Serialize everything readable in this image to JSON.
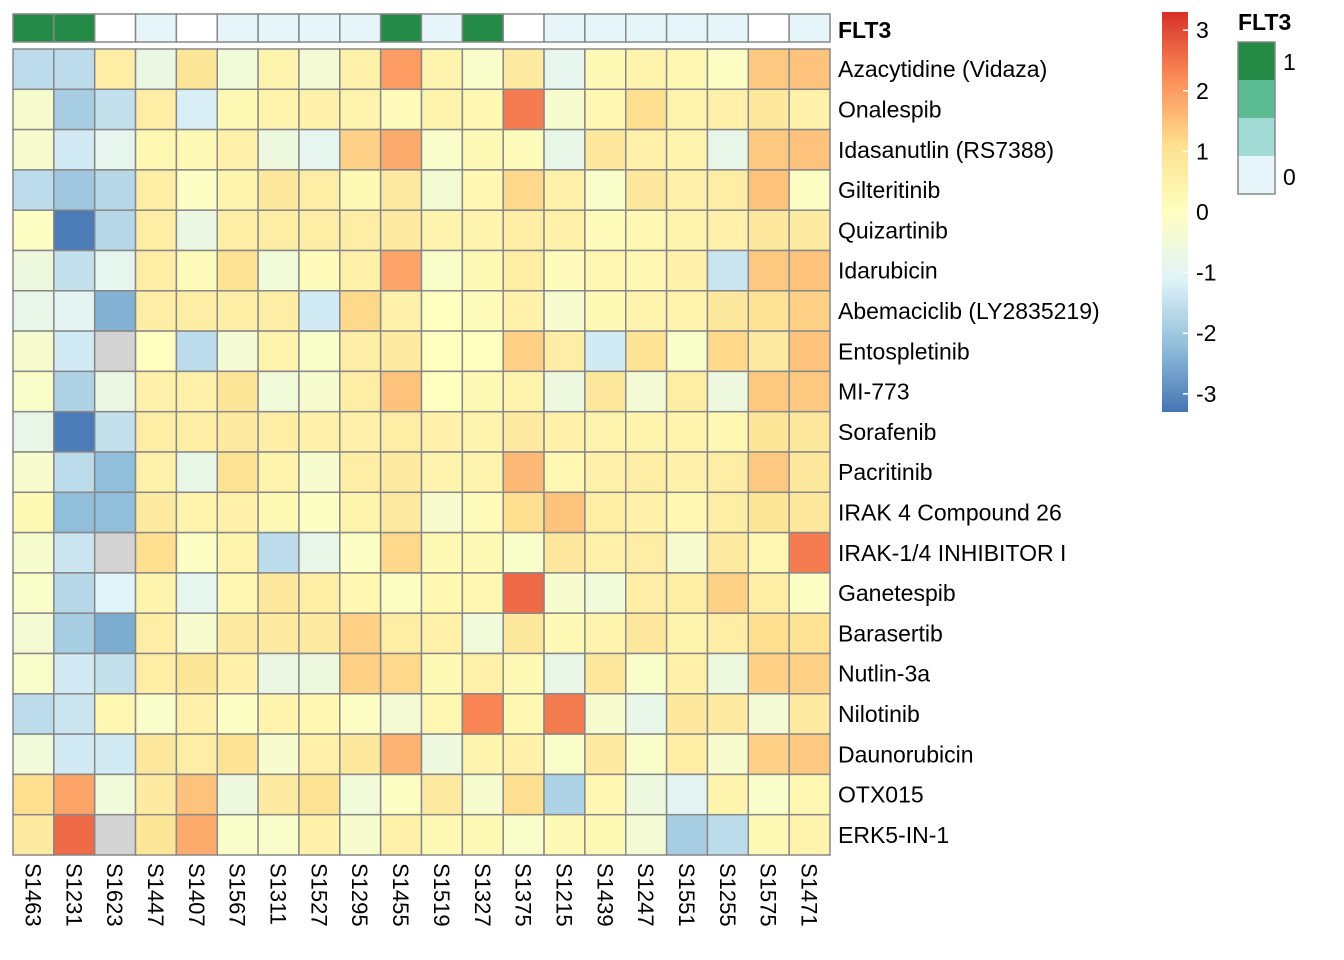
{
  "chart_data": {
    "type": "heatmap",
    "title": "",
    "columns": [
      "S1463",
      "S1231",
      "S1623",
      "S1447",
      "S1407",
      "S1567",
      "S1311",
      "S1527",
      "S1295",
      "S1455",
      "S1519",
      "S1327",
      "S1375",
      "S1215",
      "S1439",
      "S1247",
      "S1551",
      "S1255",
      "S1575",
      "S1471"
    ],
    "rows": [
      "Azacytidine (Vidaza)",
      "Onalespib",
      "Idasanutlin (RS7388)",
      "Gilteritinib",
      "Quizartinib",
      "Idarubicin",
      "Abemaciclib (LY2835219)",
      "Entospletinib",
      "MI-773",
      "Sorafenib",
      "Pacritinib",
      "IRAK 4 Compound 26",
      "IRAK-1/4 INHIBITOR I",
      "Ganetespib",
      "Barasertib",
      "Nutlin-3a",
      "Nilotinib",
      "Daunorubicin",
      "OTX015",
      "ERK5-IN-1"
    ],
    "values": [
      [
        -1.6,
        -1.6,
        0.6,
        -0.7,
        0.9,
        -0.5,
        0.4,
        -0.4,
        0.5,
        2.0,
        0.4,
        -0.2,
        0.7,
        -0.9,
        0.2,
        0.4,
        0.3,
        -0.1,
        1.4,
        1.5
      ],
      [
        -0.3,
        -1.9,
        -1.5,
        0.6,
        -1.2,
        0.2,
        0.4,
        0.5,
        0.4,
        0.1,
        0.4,
        0.3,
        2.4,
        -0.3,
        0.3,
        1.1,
        0.4,
        0.5,
        0.8,
        0.5
      ],
      [
        -0.3,
        -1.3,
        -0.9,
        0.3,
        0.2,
        0.5,
        -0.6,
        -0.9,
        1.3,
        1.8,
        -0.2,
        0.2,
        0.1,
        -0.8,
        0.8,
        0.5,
        0.4,
        -0.8,
        1.4,
        1.5
      ],
      [
        -1.6,
        -2.0,
        -1.7,
        0.6,
        -0.1,
        0.4,
        0.8,
        0.6,
        0.2,
        0.7,
        -0.4,
        0.3,
        1.2,
        0.5,
        -0.2,
        0.8,
        0.5,
        0.6,
        1.5,
        -0.1
      ],
      [
        -0.1,
        -3.2,
        -1.7,
        0.6,
        -0.7,
        0.6,
        0.6,
        0.6,
        0.6,
        0.7,
        0.4,
        0.4,
        0.6,
        0.5,
        0.1,
        0.3,
        0.4,
        0.5,
        0.8,
        0.7
      ],
      [
        -0.6,
        -1.5,
        -0.9,
        0.6,
        0.1,
        1.0,
        -0.5,
        0.1,
        0.5,
        1.9,
        -0.2,
        0.2,
        0.6,
        0.1,
        0.3,
        0.3,
        0.5,
        -1.4,
        1.4,
        1.5
      ],
      [
        -0.8,
        -1.0,
        -2.4,
        0.6,
        0.6,
        0.6,
        0.6,
        -1.3,
        1.2,
        0.5,
        0.0,
        0.1,
        0.5,
        -0.3,
        0.2,
        0.4,
        0.4,
        0.8,
        1.0,
        1.3
      ],
      [
        -0.3,
        -1.3,
        null,
        0.0,
        -1.6,
        -0.4,
        0.4,
        -0.2,
        0.6,
        0.7,
        0.0,
        0.0,
        1.3,
        0.6,
        -1.3,
        1.0,
        -0.2,
        1.2,
        0.7,
        1.5
      ],
      [
        -0.2,
        -1.8,
        -0.7,
        0.5,
        0.5,
        0.9,
        -0.5,
        -0.3,
        0.6,
        1.5,
        0.0,
        0.2,
        0.4,
        -0.6,
        0.8,
        -0.4,
        0.6,
        -0.6,
        1.4,
        1.4
      ],
      [
        -0.8,
        -3.2,
        -1.5,
        0.6,
        0.6,
        0.7,
        0.6,
        0.5,
        0.5,
        0.6,
        0.5,
        0.4,
        0.7,
        0.5,
        0.4,
        0.4,
        0.4,
        0.3,
        0.9,
        0.8
      ],
      [
        -0.3,
        -1.6,
        -2.2,
        0.5,
        -0.8,
        1.0,
        0.4,
        -0.3,
        0.6,
        0.7,
        0.4,
        0.4,
        1.6,
        0.3,
        0.5,
        0.6,
        0.5,
        0.6,
        1.4,
        0.8
      ],
      [
        0.2,
        -2.2,
        -2.2,
        0.7,
        0.4,
        0.5,
        0.2,
        -0.1,
        0.4,
        0.7,
        -0.3,
        0.1,
        1.1,
        1.5,
        0.6,
        0.5,
        0.3,
        0.6,
        0.9,
        0.8
      ],
      [
        -0.3,
        -1.4,
        null,
        1.1,
        -0.1,
        0.4,
        -1.6,
        -0.8,
        -0.1,
        1.2,
        0.2,
        0.2,
        -0.2,
        0.8,
        0.5,
        0.6,
        -0.3,
        0.7,
        0.3,
        2.4
      ],
      [
        -0.2,
        -1.7,
        -1.1,
        0.4,
        -0.9,
        0.3,
        0.8,
        0.6,
        0.3,
        -0.1,
        0.3,
        0.3,
        2.6,
        -0.3,
        -0.5,
        0.6,
        0.6,
        1.3,
        0.6,
        -0.1
      ],
      [
        -0.4,
        -1.9,
        -2.5,
        0.6,
        -0.3,
        0.7,
        0.7,
        0.7,
        1.3,
        0.6,
        0.5,
        -0.5,
        0.8,
        0.2,
        0.4,
        0.8,
        0.4,
        0.6,
        1.1,
        1.0
      ],
      [
        -0.2,
        -1.3,
        -1.5,
        0.6,
        0.9,
        0.5,
        -0.7,
        -0.6,
        1.3,
        1.2,
        0.2,
        0.5,
        0.2,
        -0.8,
        0.8,
        -0.2,
        0.5,
        -0.6,
        1.3,
        1.3
      ],
      [
        -1.6,
        -1.4,
        0.3,
        -0.2,
        0.5,
        -0.1,
        0.4,
        0.3,
        -0.1,
        -0.4,
        0.3,
        2.3,
        0.3,
        2.4,
        -0.3,
        -0.8,
        0.8,
        0.7,
        -0.4,
        0.7
      ],
      [
        -0.5,
        -1.3,
        -1.3,
        0.8,
        0.6,
        1.0,
        -0.3,
        0.5,
        0.8,
        1.7,
        -0.6,
        0.4,
        0.5,
        -0.2,
        0.7,
        -0.2,
        0.6,
        -0.3,
        1.3,
        1.4
      ],
      [
        1.1,
        1.9,
        -0.5,
        0.7,
        1.5,
        -0.6,
        0.7,
        1.0,
        -0.5,
        -0.1,
        0.7,
        -0.3,
        1.1,
        -1.8,
        0.3,
        -0.6,
        -1.0,
        0.4,
        -0.2,
        0.3
      ],
      [
        0.7,
        2.6,
        null,
        0.9,
        1.8,
        -0.2,
        -0.2,
        0.5,
        -0.3,
        0.5,
        0.2,
        0.2,
        -0.2,
        0.2,
        0.2,
        -0.4,
        -1.9,
        -1.6,
        0.2,
        0.4
      ]
    ],
    "na_color": "#d3d3d3",
    "color_scale": {
      "min": -3.3,
      "max": 3.3,
      "stops": [
        "#4575b4",
        "#91bfdb",
        "#e0f3f8",
        "#ffffbf",
        "#fee090",
        "#fc8d59",
        "#d73027"
      ],
      "ticks": [
        3,
        2,
        1,
        0,
        -1,
        -2,
        -3
      ]
    },
    "annotation": {
      "name": "FLT3",
      "values": [
        1,
        1,
        0,
        0.2,
        0,
        0.2,
        0.2,
        0.2,
        0.2,
        1,
        0.2,
        1,
        0,
        0.2,
        0.2,
        0.2,
        0.2,
        0.2,
        0,
        0.2
      ],
      "colors": {
        "1": "#238b45",
        "0.2": "#e5f5f9",
        "0": "#ffffff"
      },
      "legend_title": "FLT3",
      "legend_colors": [
        "#238b45",
        "#5cbc94",
        "#a2dad6",
        "#e5f5f9"
      ],
      "legend_labels": [
        "1",
        "0"
      ]
    },
    "legend_placement": "right"
  }
}
